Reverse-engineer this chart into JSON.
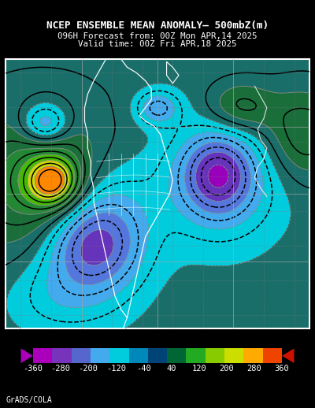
{
  "title_line1": "NCEP ENSEMBLE MEAN ANOMALY– 500mbZ(m)",
  "title_line2": "096H Forecast from: 00Z Mon APR,14 2025",
  "title_line3": "Valid time: 00Z Fri APR,18 2025",
  "colorbar_levels": [
    -360,
    -280,
    -200,
    -120,
    -40,
    40,
    120,
    200,
    280,
    360
  ],
  "cb_colors": [
    "#9900BB",
    "#6633BB",
    "#5577DD",
    "#44AAEE",
    "#00CCDD",
    "#004488",
    "#006644",
    "#00AA00",
    "#88CC00",
    "#DDCC00",
    "#FFAA00",
    "#FF6600",
    "#CC2200"
  ],
  "cf_levels": [
    -400,
    -360,
    -280,
    -200,
    -120,
    -40,
    40,
    120,
    200,
    280,
    360,
    400
  ],
  "cf_colors": [
    "#9900BB",
    "#6633BB",
    "#5577DD",
    "#44AAEE",
    "#00CCDD",
    "#1a6e6a",
    "#1a6e3a",
    "#228833",
    "#44BB00",
    "#CCDD00",
    "#FF8800"
  ],
  "background_color": "#000000",
  "footer_text": "GrADS/COLA",
  "figsize": [
    4.0,
    5.18
  ],
  "dpi": 100
}
